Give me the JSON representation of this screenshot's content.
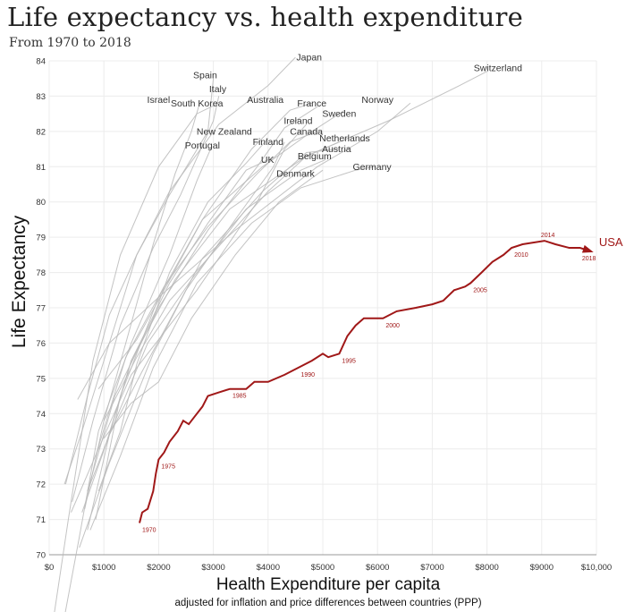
{
  "title": "Life expectancy vs. health expenditure",
  "subtitle": "From 1970 to 2018",
  "chart_data": {
    "type": "line",
    "title": "Life expectancy vs. health expenditure",
    "subtitle": "From 1970 to 2018",
    "xlabel": "Health Expenditure per capita",
    "xlabel_note": "adjusted for inflation and price differences between countries (PPP)",
    "ylabel": "Life Expectancy",
    "xlim": [
      0,
      10000
    ],
    "ylim": [
      70,
      84
    ],
    "x_ticks": [
      {
        "value": 0,
        "label": "$0"
      },
      {
        "value": 1000,
        "label": "$1000"
      },
      {
        "value": 2000,
        "label": "$2000"
      },
      {
        "value": 3000,
        "label": "$3000"
      },
      {
        "value": 4000,
        "label": "$4000"
      },
      {
        "value": 5000,
        "label": "$5000"
      },
      {
        "value": 6000,
        "label": "$6000"
      },
      {
        "value": 7000,
        "label": "$7000"
      },
      {
        "value": 8000,
        "label": "$8000"
      },
      {
        "value": 9000,
        "label": "$9000"
      },
      {
        "value": 10000,
        "label": "$10,000"
      }
    ],
    "y_ticks": [
      70,
      71,
      72,
      73,
      74,
      75,
      76,
      77,
      78,
      79,
      80,
      81,
      82,
      83,
      84
    ],
    "grid": true,
    "highlight": {
      "name": "USA",
      "color": "#a01818",
      "points": [
        [
          1650,
          70.9
        ],
        [
          1700,
          71.2
        ],
        [
          1800,
          71.3
        ],
        [
          1900,
          71.8
        ],
        [
          1950,
          72.3
        ],
        [
          2000,
          72.7
        ],
        [
          2100,
          72.9
        ],
        [
          2200,
          73.2
        ],
        [
          2350,
          73.5
        ],
        [
          2450,
          73.8
        ],
        [
          2550,
          73.7
        ],
        [
          2650,
          73.9
        ],
        [
          2800,
          74.2
        ],
        [
          2900,
          74.5
        ],
        [
          3100,
          74.6
        ],
        [
          3300,
          74.7
        ],
        [
          3600,
          74.7
        ],
        [
          3750,
          74.9
        ],
        [
          4000,
          74.9
        ],
        [
          4300,
          75.1
        ],
        [
          4550,
          75.3
        ],
        [
          4800,
          75.5
        ],
        [
          5000,
          75.7
        ],
        [
          5100,
          75.6
        ],
        [
          5300,
          75.7
        ],
        [
          5450,
          76.2
        ],
        [
          5600,
          76.5
        ],
        [
          5750,
          76.7
        ],
        [
          6100,
          76.7
        ],
        [
          6350,
          76.9
        ],
        [
          6700,
          77.0
        ],
        [
          7000,
          77.1
        ],
        [
          7200,
          77.2
        ],
        [
          7400,
          77.5
        ],
        [
          7600,
          77.6
        ],
        [
          7700,
          77.7
        ],
        [
          7900,
          78.0
        ],
        [
          8100,
          78.3
        ],
        [
          8300,
          78.5
        ],
        [
          8450,
          78.7
        ],
        [
          8650,
          78.8
        ],
        [
          9050,
          78.9
        ],
        [
          9250,
          78.8
        ],
        [
          9500,
          78.7
        ],
        [
          9700,
          78.7
        ],
        [
          9900,
          78.6
        ]
      ],
      "year_labels": [
        {
          "year": "1970",
          "x": 1650,
          "y": 70.9
        },
        {
          "year": "1975",
          "x": 2000,
          "y": 72.7
        },
        {
          "year": "1985",
          "x": 3300,
          "y": 74.7
        },
        {
          "year": "1990",
          "x": 4550,
          "y": 75.3
        },
        {
          "year": "1995",
          "x": 5300,
          "y": 75.7
        },
        {
          "year": "2000",
          "x": 6100,
          "y": 76.7
        },
        {
          "year": "2005",
          "x": 7700,
          "y": 77.7
        },
        {
          "year": "2010",
          "x": 8450,
          "y": 78.7
        },
        {
          "year": "2014",
          "x": 9050,
          "y": 78.9
        },
        {
          "year": "2018",
          "x": 9900,
          "y": 78.6
        }
      ]
    },
    "series": [
      {
        "name": "Japan",
        "points": [
          [
            280,
            72.0
          ],
          [
            600,
            73.5
          ],
          [
            1000,
            75.5
          ],
          [
            1600,
            78.5
          ],
          [
            2200,
            80.3
          ],
          [
            3100,
            82.2
          ],
          [
            4000,
            83.3
          ],
          [
            4500,
            84.1
          ]
        ]
      },
      {
        "name": "Switzerland",
        "points": [
          [
            1050,
            73.2
          ],
          [
            1500,
            75.5
          ],
          [
            2300,
            77.8
          ],
          [
            3300,
            79.8
          ],
          [
            4700,
            81.3
          ],
          [
            6200,
            82.3
          ],
          [
            7500,
            83.3
          ],
          [
            8000,
            83.7
          ]
        ]
      },
      {
        "name": "Spain",
        "points": [
          [
            300,
            72.0
          ],
          [
            700,
            74.5
          ],
          [
            1100,
            76.8
          ],
          [
            1600,
            78.5
          ],
          [
            2200,
            80.2
          ],
          [
            2900,
            82.0
          ],
          [
            3000,
            83.5
          ]
        ]
      },
      {
        "name": "Italy",
        "points": [
          [
            420,
            71.5
          ],
          [
            800,
            73.8
          ],
          [
            1300,
            76.5
          ],
          [
            1900,
            78.7
          ],
          [
            2400,
            80.2
          ],
          [
            3000,
            82.3
          ],
          [
            3100,
            83.0
          ]
        ]
      },
      {
        "name": "Israel",
        "points": [
          [
            650,
            71.3
          ],
          [
            1000,
            73.8
          ],
          [
            1400,
            76.0
          ],
          [
            1900,
            78.8
          ],
          [
            2300,
            80.8
          ],
          [
            2600,
            82.0
          ],
          [
            2750,
            82.8
          ]
        ]
      },
      {
        "name": "South Korea",
        "points": [
          [
            60,
            62.5
          ],
          [
            350,
            71.0
          ],
          [
            800,
            75.5
          ],
          [
            1300,
            78.5
          ],
          [
            2000,
            81.0
          ],
          [
            2700,
            82.5
          ],
          [
            3100,
            82.8
          ]
        ]
      },
      {
        "name": "Australia",
        "points": [
          [
            850,
            71.0
          ],
          [
            1300,
            74.5
          ],
          [
            2000,
            77.3
          ],
          [
            2800,
            79.5
          ],
          [
            3700,
            81.5
          ],
          [
            4400,
            82.6
          ],
          [
            4800,
            82.8
          ]
        ]
      },
      {
        "name": "France",
        "points": [
          [
            700,
            71.8
          ],
          [
            1200,
            74.5
          ],
          [
            2000,
            77.0
          ],
          [
            2900,
            79.2
          ],
          [
            3800,
            81.0
          ],
          [
            4300,
            82.1
          ],
          [
            4900,
            82.7
          ]
        ]
      },
      {
        "name": "Norway",
        "points": [
          [
            520,
            74.4
          ],
          [
            1100,
            76.0
          ],
          [
            2000,
            77.3
          ],
          [
            3400,
            79.2
          ],
          [
            4900,
            81.0
          ],
          [
            6000,
            82.0
          ],
          [
            6600,
            82.8
          ]
        ]
      },
      {
        "name": "Sweden",
        "points": [
          [
            900,
            74.7
          ],
          [
            1600,
            76.1
          ],
          [
            2100,
            77.5
          ],
          [
            2800,
            79.5
          ],
          [
            3900,
            81.0
          ],
          [
            4800,
            82.0
          ],
          [
            5400,
            82.6
          ]
        ]
      },
      {
        "name": "Ireland",
        "points": [
          [
            400,
            71.2
          ],
          [
            900,
            73.0
          ],
          [
            1500,
            75.1
          ],
          [
            2700,
            77.5
          ],
          [
            3800,
            80.0
          ],
          [
            4300,
            81.5
          ],
          [
            4700,
            82.2
          ]
        ]
      },
      {
        "name": "Canada",
        "points": [
          [
            850,
            72.8
          ],
          [
            1400,
            75.6
          ],
          [
            2100,
            77.6
          ],
          [
            2900,
            79.3
          ],
          [
            3800,
            80.8
          ],
          [
            4400,
            81.7
          ],
          [
            4900,
            82.0
          ]
        ]
      },
      {
        "name": "Netherlands",
        "points": [
          [
            1000,
            73.8
          ],
          [
            1600,
            75.6
          ],
          [
            2200,
            77.2
          ],
          [
            2900,
            78.4
          ],
          [
            4000,
            80.3
          ],
          [
            4700,
            81.3
          ],
          [
            5300,
            81.7
          ]
        ]
      },
      {
        "name": "Austria",
        "points": [
          [
            550,
            70.2
          ],
          [
            1100,
            72.6
          ],
          [
            1900,
            75.7
          ],
          [
            2800,
            78.4
          ],
          [
            3900,
            80.3
          ],
          [
            4700,
            81.4
          ],
          [
            5300,
            81.5
          ]
        ]
      },
      {
        "name": "Belgium",
        "points": [
          [
            600,
            71.2
          ],
          [
            1100,
            73.4
          ],
          [
            1800,
            76.0
          ],
          [
            2600,
            77.8
          ],
          [
            3600,
            79.8
          ],
          [
            4600,
            80.9
          ],
          [
            5050,
            81.2
          ]
        ]
      },
      {
        "name": "New Zealand",
        "points": [
          [
            900,
            71.8
          ],
          [
            1300,
            73.5
          ],
          [
            1600,
            75.4
          ],
          [
            2200,
            78.0
          ],
          [
            2900,
            80.0
          ],
          [
            3600,
            81.1
          ],
          [
            4000,
            81.8
          ]
        ]
      },
      {
        "name": "Finland",
        "points": [
          [
            700,
            70.7
          ],
          [
            1100,
            73.4
          ],
          [
            1700,
            75.2
          ],
          [
            2500,
            77.5
          ],
          [
            3400,
            79.5
          ],
          [
            4100,
            81.0
          ],
          [
            4300,
            81.7
          ]
        ]
      },
      {
        "name": "Portugal",
        "points": [
          [
            250,
            67.3
          ],
          [
            550,
            70.5
          ],
          [
            900,
            73.5
          ],
          [
            1500,
            76.0
          ],
          [
            2200,
            78.5
          ],
          [
            2700,
            80.6
          ],
          [
            2950,
            81.5
          ]
        ]
      },
      {
        "name": "UK",
        "points": [
          [
            700,
            71.8
          ],
          [
            1100,
            73.4
          ],
          [
            1500,
            75.5
          ],
          [
            2200,
            77.7
          ],
          [
            2900,
            79.4
          ],
          [
            3600,
            80.9
          ],
          [
            4000,
            81.2
          ]
        ]
      },
      {
        "name": "Denmark",
        "points": [
          [
            1000,
            73.3
          ],
          [
            1500,
            74.3
          ],
          [
            2000,
            74.9
          ],
          [
            2600,
            76.7
          ],
          [
            3400,
            78.5
          ],
          [
            4200,
            80.0
          ],
          [
            5000,
            80.9
          ]
        ]
      },
      {
        "name": "Germany",
        "points": [
          [
            750,
            70.7
          ],
          [
            1300,
            72.8
          ],
          [
            1900,
            75.3
          ],
          [
            2700,
            77.7
          ],
          [
            3700,
            79.4
          ],
          [
            4600,
            80.4
          ],
          [
            5600,
            80.9
          ],
          [
            5950,
            81.0
          ]
        ]
      }
    ],
    "annotations": [
      {
        "text": "Japan",
        "x": 4750,
        "y": 84.1
      },
      {
        "text": "Switzerland",
        "x": 8200,
        "y": 83.8
      },
      {
        "text": "Spain",
        "x": 2850,
        "y": 83.6
      },
      {
        "text": "Italy",
        "x": 3080,
        "y": 83.2
      },
      {
        "text": "Israel",
        "x": 2000,
        "y": 82.9
      },
      {
        "text": "South Korea",
        "x": 2700,
        "y": 82.8
      },
      {
        "text": "Australia",
        "x": 3950,
        "y": 82.9
      },
      {
        "text": "France",
        "x": 4800,
        "y": 82.8
      },
      {
        "text": "Norway",
        "x": 6000,
        "y": 82.9
      },
      {
        "text": "Sweden",
        "x": 5300,
        "y": 82.5
      },
      {
        "text": "Ireland",
        "x": 4550,
        "y": 82.3
      },
      {
        "text": "Canada",
        "x": 4700,
        "y": 82.0
      },
      {
        "text": "New Zealand",
        "x": 3200,
        "y": 82.0
      },
      {
        "text": "Netherlands",
        "x": 5400,
        "y": 81.8
      },
      {
        "text": "Finland",
        "x": 4000,
        "y": 81.7
      },
      {
        "text": "Austria",
        "x": 5250,
        "y": 81.5
      },
      {
        "text": "Belgium",
        "x": 4850,
        "y": 81.3
      },
      {
        "text": "Portugal",
        "x": 2800,
        "y": 81.6
      },
      {
        "text": "UK",
        "x": 3990,
        "y": 81.2
      },
      {
        "text": "Denmark",
        "x": 4500,
        "y": 80.8
      },
      {
        "text": "Germany",
        "x": 5900,
        "y": 81.0
      }
    ]
  }
}
